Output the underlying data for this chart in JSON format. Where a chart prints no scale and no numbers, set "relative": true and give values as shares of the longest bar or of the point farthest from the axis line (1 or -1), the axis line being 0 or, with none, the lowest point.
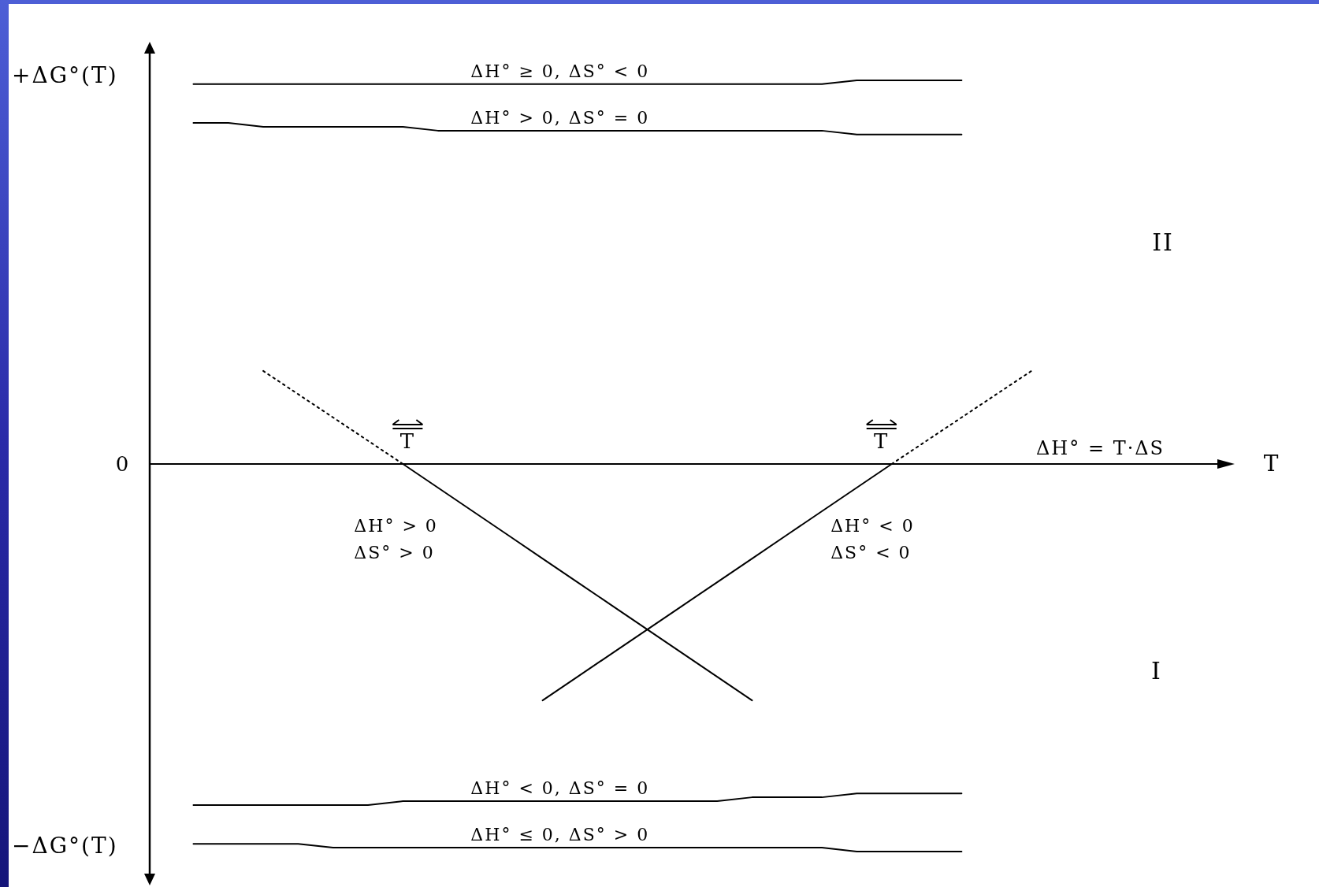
{
  "chart_data": {
    "type": "line",
    "relative": true,
    "line_style": "solid",
    "ylabel": "+ΔG°(T)",
    "categories": [
      null,
      null,
      null,
      null,
      null,
      null,
      null,
      null,
      null,
      null,
      null,
      null,
      null,
      null,
      null,
      null,
      null,
      null,
      null,
      null,
      null,
      null,
      null,
      null,
      null
    ],
    "series": [
      {
        "name": "ΔH° ≥ 0, ΔS° < 0",
        "color": "#000000",
        "values": [
          0.98,
          0.98,
          0.98,
          0.98,
          0.98,
          0.98,
          0.98,
          0.98,
          0.98,
          0.98,
          0.98,
          0.98,
          0.98,
          0.98,
          0.98,
          0.98,
          0.98,
          0.98,
          0.98,
          0.99,
          0.99,
          0.99,
          0.99,
          null,
          null
        ]
      },
      {
        "name": "ΔH° > 0, ΔS° = 0",
        "color": "#000000",
        "values": [
          0.88,
          0.88,
          0.87,
          0.87,
          0.87,
          0.87,
          0.87,
          0.86,
          0.86,
          0.86,
          0.86,
          0.86,
          0.86,
          0.86,
          0.86,
          0.86,
          0.86,
          0.86,
          0.86,
          0.85,
          0.85,
          0.85,
          0.85,
          null,
          null
        ]
      },
      {
        "name": "ΔH° < 0, ΔS° = 0",
        "color": "#000000",
        "values": [
          -0.88,
          -0.88,
          -0.88,
          -0.88,
          -0.88,
          -0.88,
          -0.87,
          -0.87,
          -0.87,
          -0.87,
          -0.87,
          -0.87,
          -0.87,
          -0.87,
          -0.87,
          -0.87,
          -0.86,
          -0.86,
          -0.86,
          -0.85,
          -0.85,
          -0.85,
          -0.85,
          null,
          null
        ]
      },
      {
        "name": "ΔH° ≤ 0, ΔS° > 0",
        "color": "#000000",
        "values": [
          -0.98,
          -0.98,
          -0.98,
          -0.98,
          -0.99,
          -0.99,
          -0.99,
          -0.99,
          -0.99,
          -0.99,
          -0.99,
          -0.99,
          -0.99,
          -0.99,
          -0.99,
          -0.99,
          -0.99,
          -0.99,
          -0.99,
          -1,
          -1,
          -1,
          -1,
          null,
          null
        ]
      },
      {
        "name": "ΔH° > 0\nΔS° > 0",
        "color": "#000000",
        "values": [
          null,
          null,
          null,
          null,
          null,
          null,
          0,
          -0.061,
          -0.122,
          -0.183,
          -0.244,
          -0.305,
          -0.366,
          -0.427,
          -0.488,
          -0.549,
          -0.61,
          null,
          null,
          null,
          null,
          null,
          null,
          null,
          null
        ]
      },
      {
        "name": "ΔH° < 0\nΔS° < 0",
        "color": "#000000",
        "values": [
          null,
          null,
          null,
          null,
          null,
          null,
          null,
          null,
          null,
          null,
          -0.61,
          -0.549,
          -0.488,
          -0.427,
          -0.366,
          -0.305,
          -0.244,
          -0.183,
          -0.122,
          -0.061,
          0,
          null,
          null,
          null,
          null
        ]
      },
      {
        "color": "#000000",
        "line_style": "dotted",
        "values": [
          null,
          null,
          0.24,
          0.18,
          0.12,
          0.06,
          0,
          null,
          null,
          null,
          null,
          null,
          null,
          null,
          null,
          null,
          null,
          null,
          null,
          null,
          null,
          null,
          null,
          null,
          null
        ]
      },
      {
        "color": "#000000",
        "line_style": "dotted",
        "values": [
          null,
          null,
          null,
          null,
          null,
          null,
          null,
          null,
          null,
          null,
          null,
          null,
          null,
          null,
          null,
          null,
          null,
          null,
          null,
          null,
          0,
          0.06,
          0.12,
          0.18,
          0.24
        ]
      }
    ],
    "annotations": [
      "0",
      "−ΔG°(T)",
      "T",
      "T",
      "ΔH° = T·ΔS",
      "II",
      "I",
      "T"
    ]
  }
}
